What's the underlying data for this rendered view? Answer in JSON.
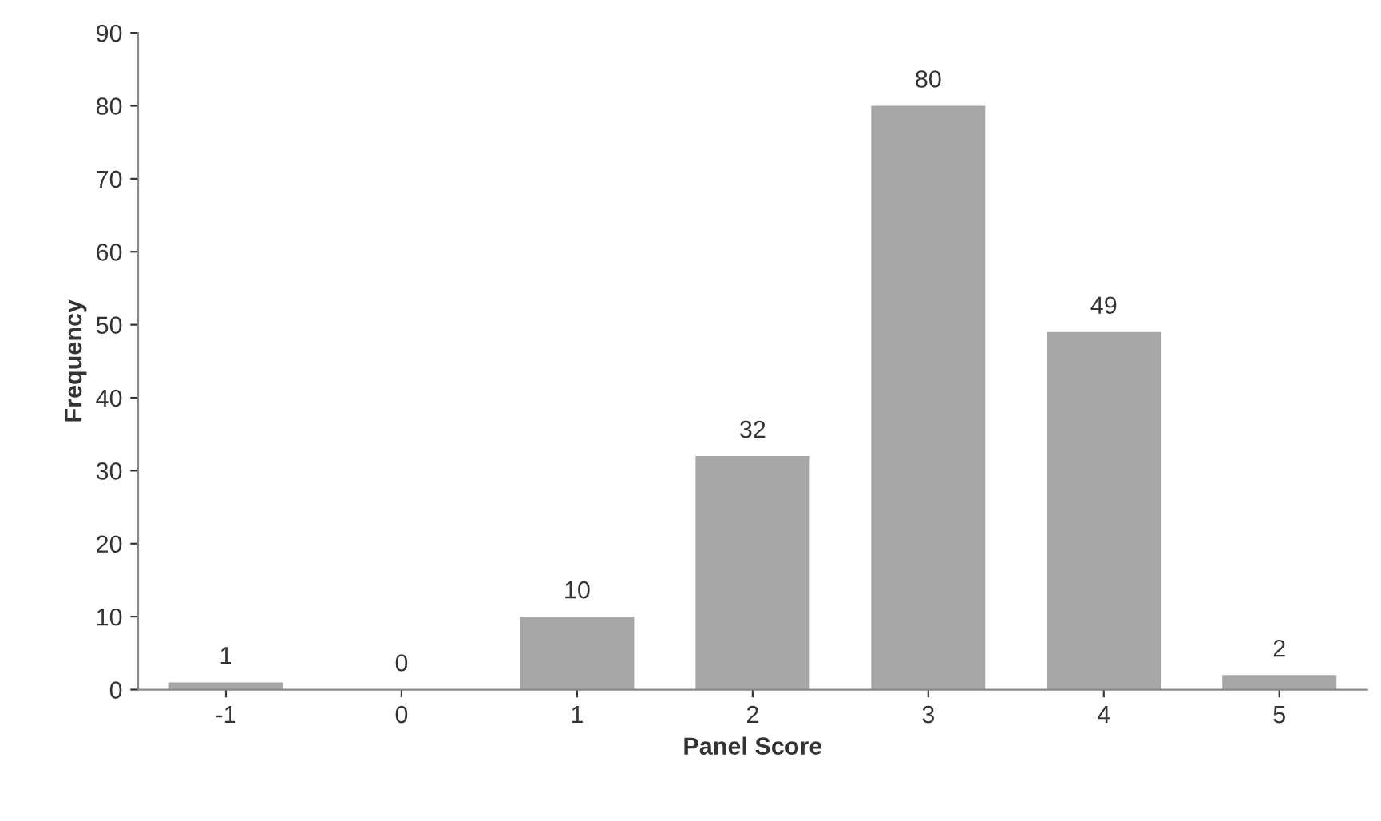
{
  "chart_data": {
    "type": "bar",
    "xlabel": "Panel Score",
    "ylabel": "Frequency",
    "categories": [
      "-1",
      "0",
      "1",
      "2",
      "3",
      "4",
      "5"
    ],
    "values": [
      1,
      0,
      10,
      32,
      80,
      49,
      2
    ],
    "color": "#a6a6a6",
    "ylim": [
      0,
      90
    ],
    "yticks": [
      0,
      10,
      20,
      30,
      40,
      50,
      60,
      70,
      80,
      90
    ],
    "data_labels": true,
    "grid": false,
    "legend": false
  }
}
